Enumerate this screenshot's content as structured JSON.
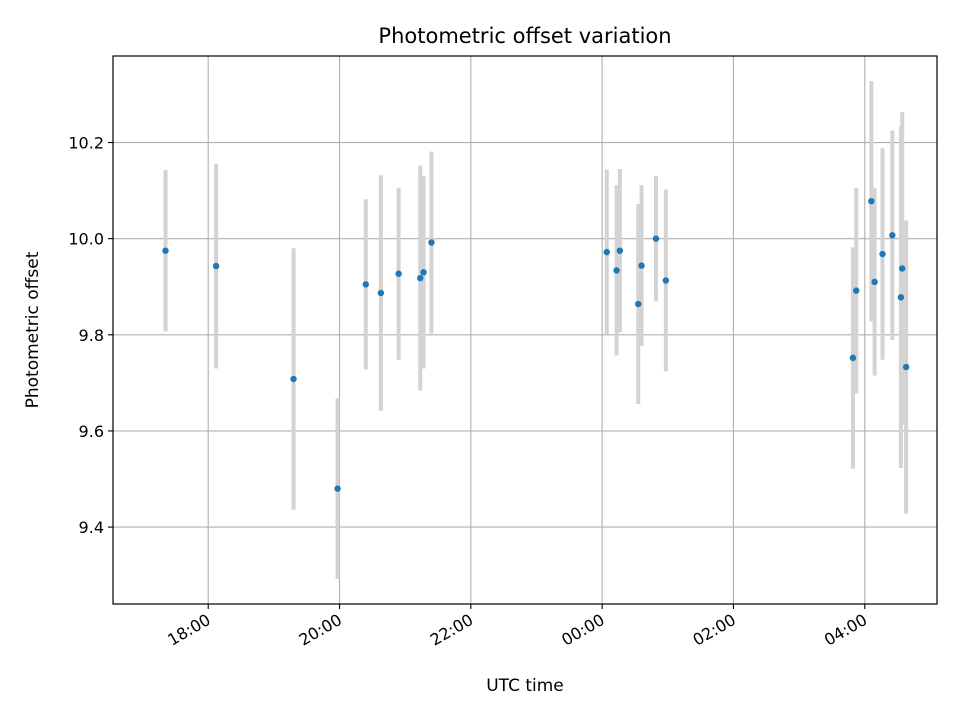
{
  "chart_data": {
    "type": "scatter",
    "title": "Photometric offset variation",
    "xlabel": "UTC time",
    "ylabel": "Photometric offset",
    "x_unit": "hours after 17:00 UTC (next day continues past 24:00)",
    "xlim": [
      16.55,
      29.1
    ],
    "ylim": [
      9.24,
      10.38
    ],
    "x_ticks": [
      {
        "value": 18,
        "label": "18:00"
      },
      {
        "value": 20,
        "label": "20:00"
      },
      {
        "value": 22,
        "label": "22:00"
      },
      {
        "value": 24,
        "label": "00:00"
      },
      {
        "value": 26,
        "label": "02:00"
      },
      {
        "value": 28,
        "label": "04:00"
      }
    ],
    "y_ticks": [
      {
        "value": 9.4,
        "label": "9.4"
      },
      {
        "value": 9.6,
        "label": "9.6"
      },
      {
        "value": 9.8,
        "label": "9.8"
      },
      {
        "value": 10.0,
        "label": "10.0"
      },
      {
        "value": 10.2,
        "label": "10.2"
      }
    ],
    "grid": true,
    "colors": {
      "point": "#1f77b4",
      "errorbar": "#d3d3d3",
      "grid": "#b0b0b0"
    },
    "points": [
      {
        "x": 17.35,
        "y": 9.975,
        "err": 0.168
      },
      {
        "x": 18.12,
        "y": 9.943,
        "err": 0.213
      },
      {
        "x": 19.3,
        "y": 9.708,
        "err": 0.272
      },
      {
        "x": 19.97,
        "y": 9.48,
        "err": 0.188
      },
      {
        "x": 20.4,
        "y": 9.905,
        "err": 0.177
      },
      {
        "x": 20.63,
        "y": 9.887,
        "err": 0.245
      },
      {
        "x": 20.9,
        "y": 9.927,
        "err": 0.179
      },
      {
        "x": 21.23,
        "y": 9.918,
        "err": 0.234
      },
      {
        "x": 21.28,
        "y": 9.93,
        "err": 0.2
      },
      {
        "x": 21.4,
        "y": 9.992,
        "err": 0.189
      },
      {
        "x": 24.07,
        "y": 9.972,
        "err": 0.172
      },
      {
        "x": 24.22,
        "y": 9.934,
        "err": 0.177
      },
      {
        "x": 24.27,
        "y": 9.975,
        "err": 0.17
      },
      {
        "x": 24.55,
        "y": 9.864,
        "err": 0.208
      },
      {
        "x": 24.6,
        "y": 9.944,
        "err": 0.167
      },
      {
        "x": 24.82,
        "y": 10.0,
        "err": 0.13
      },
      {
        "x": 24.97,
        "y": 9.913,
        "err": 0.189
      },
      {
        "x": 27.82,
        "y": 9.752,
        "err": 0.23
      },
      {
        "x": 27.87,
        "y": 9.892,
        "err": 0.214
      },
      {
        "x": 28.1,
        "y": 10.078,
        "err": 0.25
      },
      {
        "x": 28.15,
        "y": 9.91,
        "err": 0.195
      },
      {
        "x": 28.27,
        "y": 9.968,
        "err": 0.22
      },
      {
        "x": 28.42,
        "y": 10.007,
        "err": 0.218
      },
      {
        "x": 28.55,
        "y": 9.878,
        "err": 0.355
      },
      {
        "x": 28.57,
        "y": 9.938,
        "err": 0.325
      },
      {
        "x": 28.63,
        "y": 9.733,
        "err": 0.305
      }
    ]
  }
}
